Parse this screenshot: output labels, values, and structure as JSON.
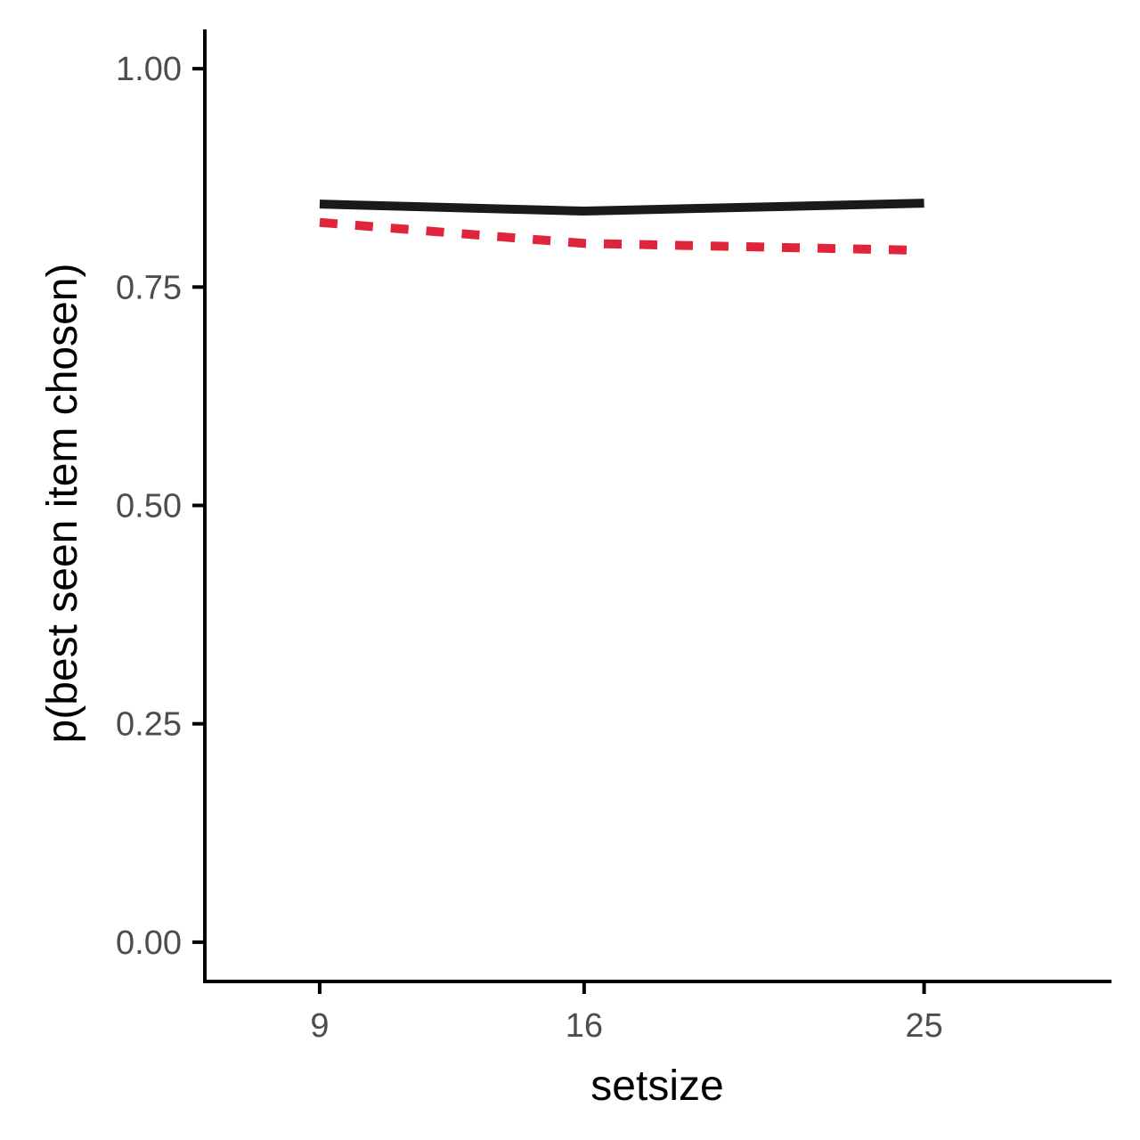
{
  "chart_data": {
    "type": "line",
    "xlabel": "setsize",
    "ylabel": "p(best seen item chosen)",
    "categories": [
      "9",
      "16",
      "25"
    ],
    "x": [
      9,
      16,
      25
    ],
    "ylim": [
      -0.045,
      1.045
    ],
    "yticks": [
      {
        "value": 0.0,
        "label": "0.00"
      },
      {
        "value": 0.25,
        "label": "0.25"
      },
      {
        "value": 0.5,
        "label": "0.50"
      },
      {
        "value": 0.75,
        "label": "0.75"
      },
      {
        "value": 1.0,
        "label": "1.00"
      }
    ],
    "grid": false,
    "legend": "none",
    "series": [
      {
        "values": [
          0.845,
          0.837,
          0.846
        ],
        "color": "#1a1a1a",
        "linestyle": "solid"
      },
      {
        "values": [
          0.824,
          0.8,
          0.792
        ],
        "color": "#e0243a",
        "linestyle": "dashed"
      }
    ]
  }
}
